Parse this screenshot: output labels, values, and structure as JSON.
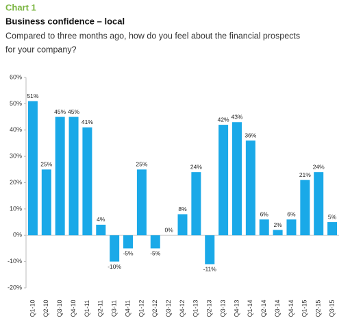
{
  "chart_data": {
    "type": "bar",
    "label": "Chart 1",
    "title": "Business confidence – local",
    "subtitle": [
      "Compared to three months ago, how do you feel about the financial prospects",
      "for your company?"
    ],
    "categories": [
      "Q1-10",
      "Q2-10",
      "Q3-10",
      "Q4-10",
      "Q1-11",
      "Q2-11",
      "Q3-11",
      "Q4-11",
      "Q1-12",
      "Q2-12",
      "Q3-12",
      "Q4-12",
      "Q1-13",
      "Q2-13",
      "Q3-13",
      "Q4-13",
      "Q1-14",
      "Q2-14",
      "Q3-14",
      "Q4-14",
      "Q1-15",
      "Q2-15",
      "Q3-15"
    ],
    "values": [
      51,
      25,
      45,
      45,
      41,
      4,
      -10,
      -5,
      25,
      -5,
      0,
      8,
      24,
      -11,
      42,
      43,
      36,
      6,
      2,
      6,
      21,
      24,
      5
    ],
    "value_labels": [
      "51%",
      "25%",
      "45%",
      "45%",
      "41%",
      "4%",
      "-10%",
      "-5%",
      "25%",
      "-5%",
      "0%",
      "8%",
      "24%",
      "-11%",
      "42%",
      "43%",
      "36%",
      "6%",
      "2%",
      "6%",
      "21%",
      "24%",
      "5%"
    ],
    "color": "#1aa9e8",
    "ylim": [
      -20,
      60
    ],
    "yticks": [
      {
        "value": -20,
        "label": "-20%"
      },
      {
        "value": -10,
        "label": "-10%"
      },
      {
        "value": 0,
        "label": "0%"
      },
      {
        "value": 10,
        "label": "10%"
      },
      {
        "value": 20,
        "label": "20%"
      },
      {
        "value": 30,
        "label": "30%"
      },
      {
        "value": 40,
        "label": "40%"
      },
      {
        "value": 50,
        "label": "50%"
      },
      {
        "value": 60,
        "label": "60%"
      }
    ],
    "grid": false
  }
}
